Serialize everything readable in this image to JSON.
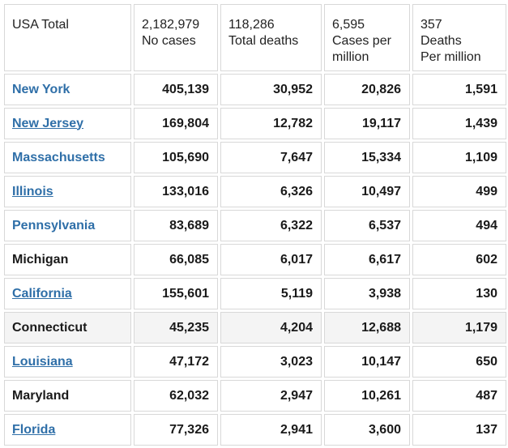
{
  "header": {
    "label": "USA Total",
    "cases_value": "2,182,979",
    "cases_label": "No cases",
    "deaths_value": "118,286",
    "deaths_label": "Total deaths",
    "cases_per_million_value": "6,595",
    "cases_per_million_label_1": "Cases per",
    "cases_per_million_label_2": "million",
    "deaths_per_million_value": "357",
    "deaths_per_million_label_1": "Deaths",
    "deaths_per_million_label_2": "Per million"
  },
  "rows": [
    {
      "state": "New York",
      "cases": "405,139",
      "deaths": "30,952",
      "cases_pm": "20,826",
      "deaths_pm": "1,591"
    },
    {
      "state": "New Jersey",
      "cases": "169,804",
      "deaths": "12,782",
      "cases_pm": "19,117",
      "deaths_pm": "1,439"
    },
    {
      "state": "Massachusetts",
      "cases": "105,690",
      "deaths": "7,647",
      "cases_pm": "15,334",
      "deaths_pm": "1,109"
    },
    {
      "state": "Illinois",
      "cases": "133,016",
      "deaths": "6,326",
      "cases_pm": "10,497",
      "deaths_pm": "499"
    },
    {
      "state": "Pennsylvania",
      "cases": "83,689",
      "deaths": "6,322",
      "cases_pm": "6,537",
      "deaths_pm": "494"
    },
    {
      "state": "Michigan",
      "cases": "66,085",
      "deaths": "6,017",
      "cases_pm": "6,617",
      "deaths_pm": "602"
    },
    {
      "state": "California",
      "cases": "155,601",
      "deaths": "5,119",
      "cases_pm": "3,938",
      "deaths_pm": "130"
    },
    {
      "state": "Connecticut",
      "cases": "45,235",
      "deaths": "4,204",
      "cases_pm": "12,688",
      "deaths_pm": "1,179"
    },
    {
      "state": "Louisiana",
      "cases": "47,172",
      "deaths": "3,023",
      "cases_pm": "10,147",
      "deaths_pm": "650"
    },
    {
      "state": "Maryland",
      "cases": "62,032",
      "deaths": "2,947",
      "cases_pm": "10,261",
      "deaths_pm": "487"
    },
    {
      "state": "Florida",
      "cases": "77,326",
      "deaths": "2,941",
      "cases_pm": "3,600",
      "deaths_pm": "137"
    }
  ],
  "colors": {
    "link": "#2f6fa8",
    "text": "#1a1a1a",
    "border": "#d8d8d8",
    "row_highlight": "#f4f4f4"
  }
}
